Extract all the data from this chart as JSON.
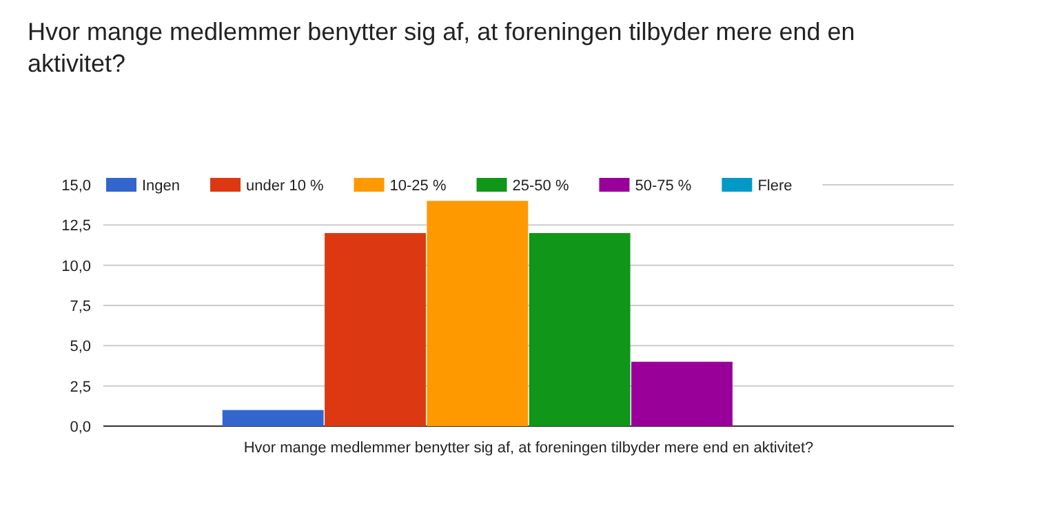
{
  "chart_data": {
    "type": "bar",
    "title": "Hvor mange medlemmer benytter sig af, at foreningen tilbyder mere end en aktivitet?",
    "xlabel": "Hvor mange medlemmer benytter sig af, at foreningen tilbyder mere end en aktivitet?",
    "categories": [
      null
    ],
    "series": [
      {
        "name": "Ingen",
        "color": "#3366cc",
        "values": [
          1
        ]
      },
      {
        "name": "under 10 %",
        "color": "#dc3912",
        "values": [
          12
        ]
      },
      {
        "name": "10-25 %",
        "color": "#ff9900",
        "values": [
          14
        ]
      },
      {
        "name": "25-50 %",
        "color": "#109618",
        "values": [
          12
        ]
      },
      {
        "name": "50-75 %",
        "color": "#990099",
        "values": [
          4
        ]
      },
      {
        "name": "Flere",
        "color": "#0099c6",
        "values": [
          0
        ]
      }
    ],
    "ylim": [
      0,
      15
    ],
    "yticks": [
      {
        "value": 0,
        "label": "0,0"
      },
      {
        "value": 2.5,
        "label": "2,5"
      },
      {
        "value": 5,
        "label": "5,0"
      },
      {
        "value": 7.5,
        "label": "7,5"
      },
      {
        "value": 10,
        "label": "10,0"
      },
      {
        "value": 12.5,
        "label": "12,5"
      },
      {
        "value": 15,
        "label": "15,0"
      }
    ],
    "grid": "y",
    "legend": "top"
  }
}
